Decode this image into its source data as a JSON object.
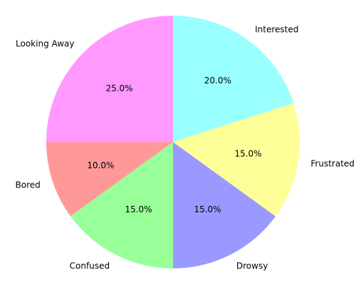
{
  "chart_data": {
    "type": "pie",
    "title": "",
    "start_angle_deg": 180,
    "direction": "counterclockwise",
    "label_format": "{value:.1f}%",
    "slices": [
      {
        "label": "Bored",
        "value": 10.0,
        "pct_label": "10.0%",
        "color": "#ff9999"
      },
      {
        "label": "Confused",
        "value": 15.0,
        "pct_label": "15.0%",
        "color": "#99ff99"
      },
      {
        "label": "Drowsy",
        "value": 15.0,
        "pct_label": "15.0%",
        "color": "#9999ff"
      },
      {
        "label": "Frustrated",
        "value": 15.0,
        "pct_label": "15.0%",
        "color": "#ffff99"
      },
      {
        "label": "Interested",
        "value": 20.0,
        "pct_label": "20.0%",
        "color": "#99ffff"
      },
      {
        "label": "Looking Away",
        "value": 25.0,
        "pct_label": "25.0%",
        "color": "#ff99ff"
      }
    ]
  }
}
